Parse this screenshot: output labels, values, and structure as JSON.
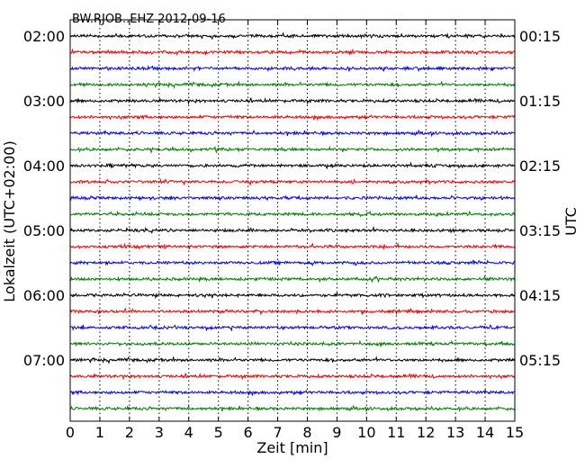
{
  "chart_data": {
    "type": "line",
    "title": "BW.RJOB..EHZ 2012-09-16",
    "xlabel": "Zeit  [min]",
    "ylabel_left": "Lokalzeit (UTC+02:00)",
    "ylabel_right": "UTC",
    "xlim": [
      0,
      15
    ],
    "x_ticks": [
      "0",
      "1",
      "2",
      "3",
      "4",
      "5",
      "6",
      "7",
      "8",
      "9",
      "10",
      "11",
      "12",
      "13",
      "14",
      "15"
    ],
    "left_tick_labels": [
      "02:00",
      "03:00",
      "04:00",
      "05:00",
      "06:00",
      "07:00"
    ],
    "right_tick_labels": [
      "00:15",
      "01:15",
      "02:15",
      "03:15",
      "04:15",
      "05:15"
    ],
    "trace_minutes": 15,
    "trace_count": 24,
    "trace_colors": [
      "#000000",
      "#ff0000",
      "#0000ff",
      "#008000"
    ],
    "grid": "vertical dotted lines at each minute"
  }
}
